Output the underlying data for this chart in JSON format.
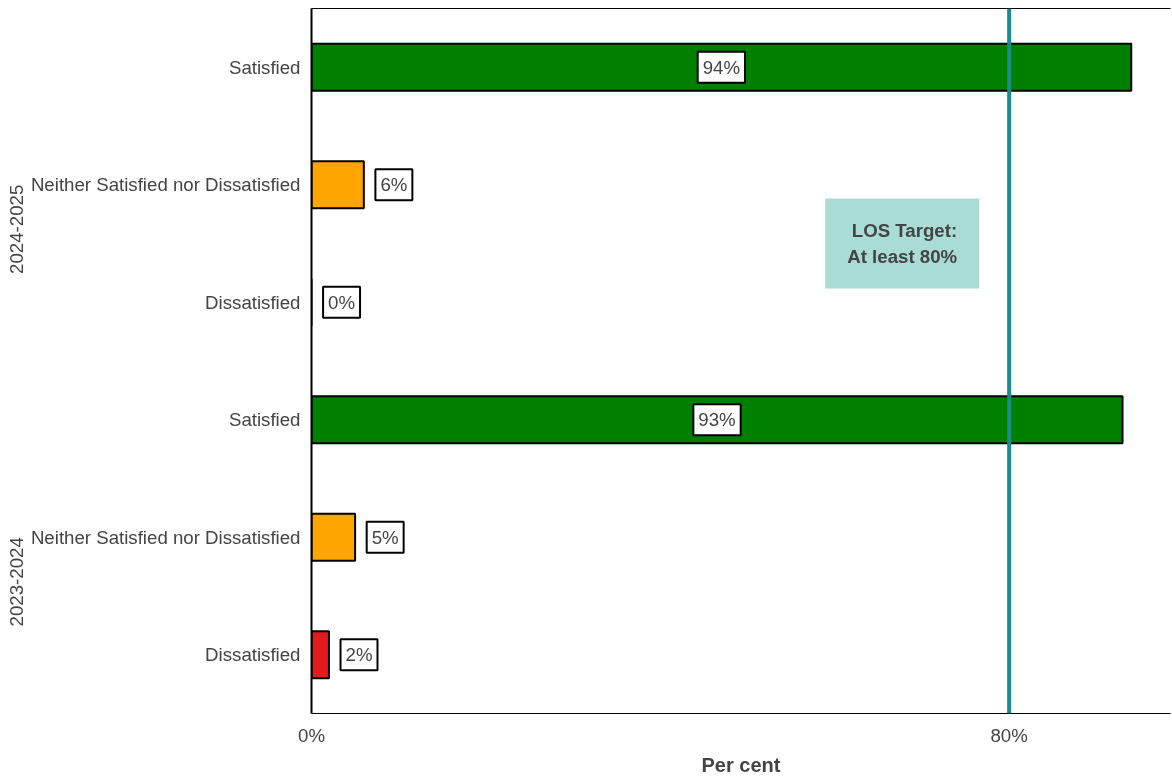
{
  "chart_data": {
    "type": "bar",
    "orientation": "horizontal",
    "xlabel": "Per cent",
    "categories": [
      "Satisfied",
      "Neither Satisfied nor Dissatisfied",
      "Dissatisfied",
      "Satisfied",
      "Neither Satisfied nor Dissatisfied",
      "Dissatisfied"
    ],
    "values": [
      94,
      6,
      0,
      93,
      5,
      2
    ],
    "colors": [
      "#008000",
      "#ffa500",
      "#e31a1c",
      "#008000",
      "#ffa500",
      "#e31a1c"
    ],
    "value_labels": [
      "94%",
      "6%",
      "0%",
      "93%",
      "5%",
      "2%"
    ],
    "xlim": [
      0,
      98.5
    ],
    "xticks": [
      {
        "value": 0,
        "label": "0%"
      },
      {
        "value": 80,
        "label": "80%"
      }
    ],
    "ref_lines": [
      {
        "axis": "x",
        "value": 80,
        "label": "LOS Target:\nAt least 80%",
        "color": "#1a8a8a"
      }
    ],
    "annotations": [
      "2024-2025",
      "2023-2024"
    ],
    "grid": false
  }
}
